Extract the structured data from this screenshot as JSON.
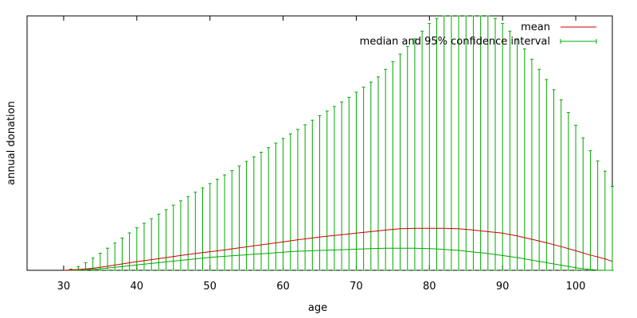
{
  "chart_data": {
    "type": "line",
    "title": "",
    "xlabel": "age",
    "ylabel": "annual donation",
    "xlim": [
      25,
      105
    ],
    "ylim": [
      0,
      1
    ],
    "xticks": [
      "30",
      "40",
      "50",
      "60",
      "70",
      "80",
      "90",
      "100"
    ],
    "yticks_shown": false,
    "grid": false,
    "legend_position": "top-right",
    "colors": {
      "mean": "#cc0000",
      "median": "#00aa00"
    },
    "series": [
      {
        "name": "mean",
        "x": [
          30,
          32,
          34,
          36,
          38,
          40,
          42,
          44,
          46,
          48,
          50,
          52,
          54,
          56,
          58,
          60,
          62,
          64,
          66,
          68,
          70,
          72,
          74,
          76,
          78,
          80,
          82,
          84,
          86,
          88,
          90,
          92,
          94,
          96,
          98,
          100,
          102,
          104,
          105
        ],
        "y": [
          0,
          0.003,
          0.008,
          0.016,
          0.025,
          0.034,
          0.042,
          0.05,
          0.058,
          0.066,
          0.073,
          0.08,
          0.088,
          0.096,
          0.104,
          0.112,
          0.12,
          0.127,
          0.134,
          0.14,
          0.146,
          0.152,
          0.158,
          0.163,
          0.165,
          0.165,
          0.165,
          0.163,
          0.158,
          0.152,
          0.146,
          0.135,
          0.122,
          0.108,
          0.093,
          0.077,
          0.06,
          0.045,
          0.035
        ]
      },
      {
        "name": "median and 95% confidence interval",
        "x": [
          31,
          32,
          33,
          34,
          35,
          36,
          37,
          38,
          39,
          40,
          41,
          42,
          43,
          44,
          45,
          46,
          47,
          48,
          49,
          50,
          51,
          52,
          53,
          54,
          55,
          56,
          57,
          58,
          59,
          60,
          61,
          62,
          63,
          64,
          65,
          66,
          67,
          68,
          69,
          70,
          71,
          72,
          73,
          74,
          75,
          76,
          77,
          78,
          79,
          80,
          81,
          82,
          83,
          84,
          85,
          86,
          87,
          88,
          89,
          90,
          91,
          92,
          93,
          94,
          95,
          96,
          97,
          98,
          99,
          100,
          101,
          102,
          103,
          104,
          105
        ],
        "median": [
          0,
          0.001,
          0.002,
          0.004,
          0.006,
          0.009,
          0.012,
          0.015,
          0.018,
          0.021,
          0.024,
          0.027,
          0.03,
          0.033,
          0.036,
          0.039,
          0.042,
          0.045,
          0.048,
          0.051,
          0.053,
          0.055,
          0.057,
          0.059,
          0.061,
          0.063,
          0.065,
          0.067,
          0.069,
          0.071,
          0.073,
          0.075,
          0.076,
          0.077,
          0.078,
          0.079,
          0.08,
          0.081,
          0.082,
          0.083,
          0.084,
          0.085,
          0.086,
          0.087,
          0.087,
          0.087,
          0.087,
          0.087,
          0.086,
          0.085,
          0.084,
          0.082,
          0.08,
          0.078,
          0.075,
          0.072,
          0.069,
          0.066,
          0.062,
          0.058,
          0.054,
          0.05,
          0.045,
          0.04,
          0.035,
          0.03,
          0.025,
          0.02,
          0.015,
          0.01,
          0.006,
          0.003,
          0.001,
          0,
          0
        ],
        "lower": [
          0,
          0,
          0,
          0,
          0,
          0,
          0,
          0,
          0,
          0,
          0,
          0,
          0,
          0,
          0,
          0,
          0,
          0,
          0,
          0,
          0,
          0,
          0,
          0,
          0,
          0,
          0,
          0,
          0,
          0,
          0,
          0,
          0,
          0,
          0,
          0,
          0,
          0,
          0,
          0,
          0,
          0,
          0,
          0,
          0,
          0,
          0,
          0,
          0,
          0,
          0,
          0,
          0,
          0,
          0,
          0,
          0,
          0,
          0,
          0,
          0,
          0,
          0,
          0,
          0,
          0,
          0,
          0,
          0,
          0,
          0,
          0,
          0,
          0,
          0
        ],
        "upper": [
          0.005,
          0.015,
          0.03,
          0.048,
          0.067,
          0.087,
          0.107,
          0.127,
          0.147,
          0.167,
          0.185,
          0.203,
          0.221,
          0.238,
          0.256,
          0.273,
          0.29,
          0.307,
          0.324,
          0.341,
          0.358,
          0.375,
          0.392,
          0.41,
          0.428,
          0.446,
          0.464,
          0.482,
          0.5,
          0.518,
          0.536,
          0.554,
          0.572,
          0.59,
          0.608,
          0.626,
          0.644,
          0.662,
          0.68,
          0.7,
          0.72,
          0.74,
          0.76,
          0.79,
          0.82,
          0.85,
          0.88,
          0.91,
          0.94,
          0.97,
          0.99,
          1.0,
          1.0,
          1.0,
          1.0,
          1.0,
          1.0,
          1.0,
          0.99,
          0.97,
          0.94,
          0.91,
          0.87,
          0.83,
          0.79,
          0.75,
          0.71,
          0.67,
          0.62,
          0.57,
          0.52,
          0.47,
          0.43,
          0.39,
          0.33
        ]
      }
    ]
  }
}
